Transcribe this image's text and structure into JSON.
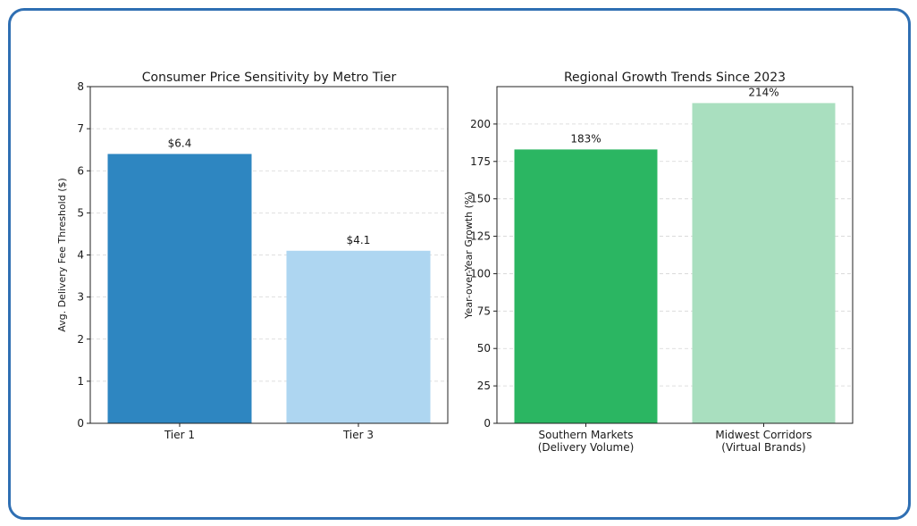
{
  "chart_data": [
    {
      "type": "bar",
      "title": "Consumer Price Sensitivity by Metro Tier",
      "xlabel": "",
      "ylabel": "Avg. Delivery Fee Threshold ($)",
      "ylim": [
        0,
        8
      ],
      "yticks": [
        0,
        1,
        2,
        3,
        4,
        5,
        6,
        7,
        8
      ],
      "grid": "horizontal dashed",
      "categories": [
        [
          "Tier 1"
        ],
        [
          "Tier 3"
        ]
      ],
      "values": [
        6.4,
        4.1
      ],
      "data_labels": [
        "$6.4",
        "$4.1"
      ],
      "colors": [
        "#2e86c1",
        "#aed6f1"
      ]
    },
    {
      "type": "bar",
      "title": "Regional Growth Trends Since 2023",
      "xlabel": "",
      "ylabel": "Year-over-Year Growth (%)",
      "ylim": [
        0,
        225
      ],
      "yticks": [
        0,
        25,
        50,
        75,
        100,
        125,
        150,
        175,
        200
      ],
      "grid": "horizontal dashed",
      "categories": [
        [
          "Southern Markets",
          "(Delivery Volume)"
        ],
        [
          "Midwest Corridors",
          "(Virtual Brands)"
        ]
      ],
      "values": [
        183,
        214
      ],
      "data_labels": [
        "183%",
        "214%"
      ],
      "colors": [
        "#2bb662",
        "#a9dfbf"
      ]
    }
  ]
}
